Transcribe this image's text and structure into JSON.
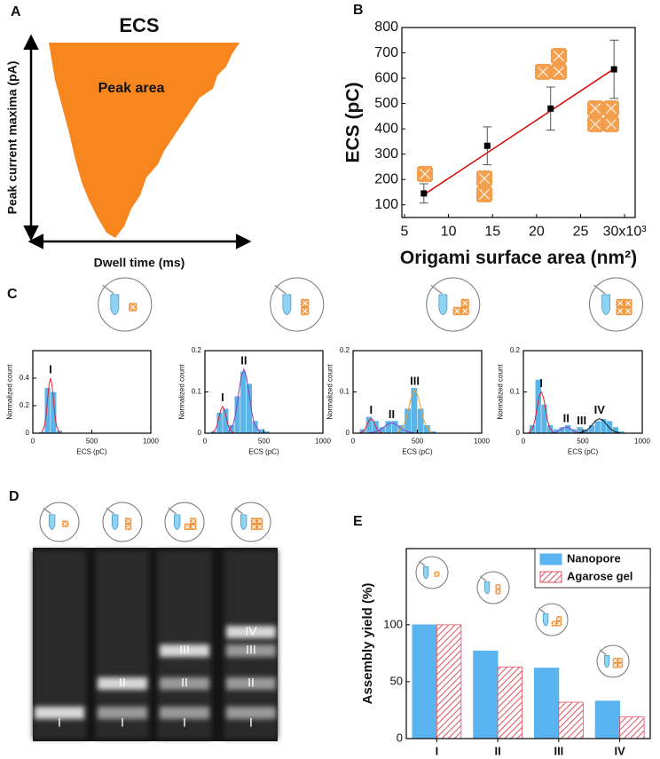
{
  "panel_labels": [
    "A",
    "B",
    "C",
    "D",
    "E"
  ],
  "schematic": {
    "title": "ECS",
    "annotation": "Peak area",
    "ylabel": "Peak current maxima (pA)",
    "xlabel": "Dwell time (ms)"
  },
  "gel": {
    "lanes": [
      [
        "I"
      ],
      [
        "II",
        "I"
      ],
      [
        "III",
        "II",
        "I"
      ],
      [
        "IV",
        "III",
        "II",
        "I"
      ]
    ]
  },
  "chart_data": [
    {
      "type": "scatter",
      "xlabel": "Origami surface area (nm²)",
      "ylabel": "ECS (pC)",
      "x": [
        7.2,
        14.4,
        21.6,
        28.8
      ],
      "values": [
        145,
        333,
        480,
        635
      ],
      "errors": [
        38,
        75,
        85,
        115
      ],
      "color": "#000000",
      "fit_line": {
        "color": "#e00000",
        "x": [
          7.2,
          28.8
        ],
        "values": [
          140,
          637
        ]
      },
      "xlim": [
        4.7,
        31.2
      ],
      "ylim": [
        50,
        800
      ],
      "xticks": [
        5,
        10,
        15,
        20,
        25,
        {
          "value": 30,
          "label": "30x10³"
        }
      ],
      "yticks": [
        100,
        200,
        300,
        400,
        500,
        600,
        700,
        800
      ]
    },
    {
      "type": "histogram",
      "xlabel": "ECS (pC)",
      "ylabel": "Normalized count",
      "bins": [
        0,
        50,
        100,
        150,
        200,
        250,
        300,
        350,
        400,
        450,
        500,
        550,
        600,
        650,
        700,
        750,
        800,
        850,
        900,
        950,
        1000
      ],
      "values": [
        0,
        0.01,
        0.33,
        0.3,
        0.02,
        0,
        0,
        0,
        0,
        0,
        0,
        0,
        0,
        0,
        0,
        0,
        0,
        0,
        0,
        0
      ],
      "color": "#5ab4e8",
      "series": [
        {
          "name": "I",
          "color": "#e0202e",
          "x": [
            75,
            100,
            112.5,
            125,
            137.5,
            150,
            162.5,
            175,
            187.5,
            200,
            225
          ],
          "values": [
            0.004,
            0.056,
            0.128,
            0.244,
            0.352,
            0.4,
            0.352,
            0.244,
            0.128,
            0.056,
            0.004
          ]
        }
      ],
      "xlim": [
        0,
        1000
      ],
      "ylim": [
        0,
        0.6
      ],
      "xticks": [
        0,
        500,
        1000
      ],
      "yticks": [
        0,
        0.2,
        0.4
      ]
    },
    {
      "type": "histogram",
      "xlabel": "ECS (pC)",
      "ylabel": "Normalized count",
      "bins": [
        0,
        50,
        100,
        150,
        200,
        250,
        300,
        350,
        400,
        450,
        500,
        550,
        600,
        650,
        700,
        750,
        800,
        850,
        900,
        950,
        1000
      ],
      "values": [
        0,
        0.005,
        0.05,
        0.06,
        0.02,
        0.09,
        0.15,
        0.12,
        0.03,
        0.01,
        0.005,
        0,
        0,
        0,
        0,
        0,
        0,
        0,
        0,
        0
      ],
      "color": "#5ab4e8",
      "series": [
        {
          "name": "I",
          "color": "#e0202e",
          "x": [
            60,
            90,
            105,
            120,
            135,
            150,
            165,
            180,
            195,
            210,
            240
          ],
          "values": [
            0.001,
            0.009,
            0.021,
            0.04,
            0.057,
            0.065,
            0.057,
            0.04,
            0.021,
            0.009,
            0.001
          ]
        },
        {
          "name": "II",
          "color": "#8a3fc0",
          "x": [
            195,
            240,
            262.5,
            285,
            307.5,
            330,
            352.5,
            375,
            397.5,
            420,
            465
          ],
          "values": [
            0.002,
            0.022,
            0.05,
            0.095,
            0.136,
            0.155,
            0.136,
            0.095,
            0.05,
            0.022,
            0.002
          ]
        }
      ],
      "xlim": [
        0,
        1000
      ],
      "ylim": [
        0,
        0.2
      ],
      "xticks": [
        0,
        500,
        1000
      ],
      "yticks": [
        0,
        0.1,
        0.2
      ]
    },
    {
      "type": "histogram",
      "xlabel": "ECS (pC)",
      "ylabel": "Normalized count",
      "bins": [
        0,
        50,
        100,
        150,
        200,
        250,
        300,
        350,
        400,
        450,
        500,
        550,
        600,
        650,
        700,
        750,
        800,
        850,
        900,
        950,
        1000
      ],
      "values": [
        0,
        0.01,
        0.04,
        0.03,
        0.015,
        0.03,
        0.03,
        0.02,
        0.06,
        0.11,
        0.06,
        0.02,
        0.005,
        0,
        0,
        0,
        0,
        0,
        0,
        0
      ],
      "color": "#5ab4e8",
      "series": [
        {
          "name": "I",
          "color": "#e0202e",
          "x": [
            50,
            80,
            95,
            110,
            125,
            140,
            155,
            170,
            185,
            200,
            230
          ],
          "values": [
            0,
            0.005,
            0.011,
            0.021,
            0.031,
            0.035,
            0.031,
            0.021,
            0.011,
            0.005,
            0
          ]
        },
        {
          "name": "II",
          "color": "#8a3fc0",
          "x": [
            120,
            180,
            210,
            240,
            270,
            300,
            330,
            360,
            390,
            420,
            480
          ],
          "values": [
            0,
            0.004,
            0.008,
            0.015,
            0.022,
            0.025,
            0.022,
            0.015,
            0.008,
            0.004,
            0
          ]
        },
        {
          "name": "III",
          "color": "#f0a030",
          "x": [
            345,
            390,
            412.5,
            435,
            457.5,
            480,
            502.5,
            525,
            547.5,
            570,
            615
          ],
          "values": [
            0.001,
            0.015,
            0.034,
            0.064,
            0.092,
            0.105,
            0.092,
            0.064,
            0.034,
            0.015,
            0.001
          ]
        }
      ],
      "xlim": [
        0,
        1000
      ],
      "ylim": [
        0,
        0.2
      ],
      "xticks": [
        0,
        500,
        1000
      ],
      "yticks": [
        0,
        0.1,
        0.2
      ]
    },
    {
      "type": "histogram",
      "xlabel": "ECS (pC)",
      "ylabel": "Normalized count",
      "bins": [
        0,
        50,
        100,
        150,
        200,
        250,
        300,
        350,
        400,
        450,
        500,
        550,
        600,
        650,
        700,
        750,
        800,
        850,
        900,
        950,
        1000
      ],
      "values": [
        0,
        0.02,
        0.13,
        0.07,
        0.02,
        0.01,
        0.015,
        0.02,
        0.01,
        0.015,
        0.01,
        0.02,
        0.03,
        0.035,
        0.03,
        0.015,
        0.005,
        0,
        0,
        0
      ],
      "color": "#5ab4e8",
      "series": [
        {
          "name": "I",
          "color": "#e0202e",
          "x": [
            45,
            80,
            97.5,
            115,
            132.5,
            150,
            167.5,
            185,
            202.5,
            220,
            255
          ],
          "values": [
            0.001,
            0.014,
            0.032,
            0.061,
            0.088,
            0.1,
            0.088,
            0.061,
            0.032,
            0.014,
            0.001
          ]
        },
        {
          "name": "II",
          "color": "#8a3fc0",
          "x": [
            225,
            270,
            292.5,
            315,
            337.5,
            360,
            382.5,
            405,
            427.5,
            450,
            495
          ],
          "values": [
            0,
            0.002,
            0.005,
            0.009,
            0.013,
            0.015,
            0.013,
            0.009,
            0.005,
            0.002,
            0
          ]
        },
        {
          "name": "III",
          "color": "#9090a0",
          "x": [
            385,
            420,
            437.5,
            455,
            472.5,
            490,
            507.5,
            525,
            542.5,
            560,
            595
          ],
          "values": [
            0,
            0.001,
            0.003,
            0.006,
            0.009,
            0.01,
            0.009,
            0.006,
            0.003,
            0.001,
            0
          ]
        },
        {
          "name": "IV",
          "color": "#111111",
          "x": [
            460,
            520,
            550,
            580,
            610,
            640,
            670,
            700,
            730,
            760,
            820
          ],
          "values": [
            0,
            0.005,
            0.011,
            0.021,
            0.031,
            0.035,
            0.031,
            0.021,
            0.011,
            0.005,
            0
          ]
        }
      ],
      "xlim": [
        0,
        1000
      ],
      "ylim": [
        0,
        0.2
      ],
      "xticks": [
        0,
        500,
        1000
      ],
      "yticks": [
        0,
        0.1,
        0.2
      ]
    },
    {
      "type": "bar",
      "ylabel": "Assembly yield (%)",
      "categories": [
        "I",
        "II",
        "III",
        "IV"
      ],
      "series": [
        {
          "name": "Nanopore",
          "color": "#5ab4f0",
          "values": [
            100,
            77,
            62,
            33
          ]
        },
        {
          "name": "Agarose gel",
          "color": "#e05060",
          "hatch": true,
          "values": [
            100,
            63,
            32,
            19
          ]
        }
      ],
      "ylim": [
        0,
        167
      ],
      "yticks": [
        0,
        50,
        100
      ],
      "legend": "upper right"
    }
  ]
}
